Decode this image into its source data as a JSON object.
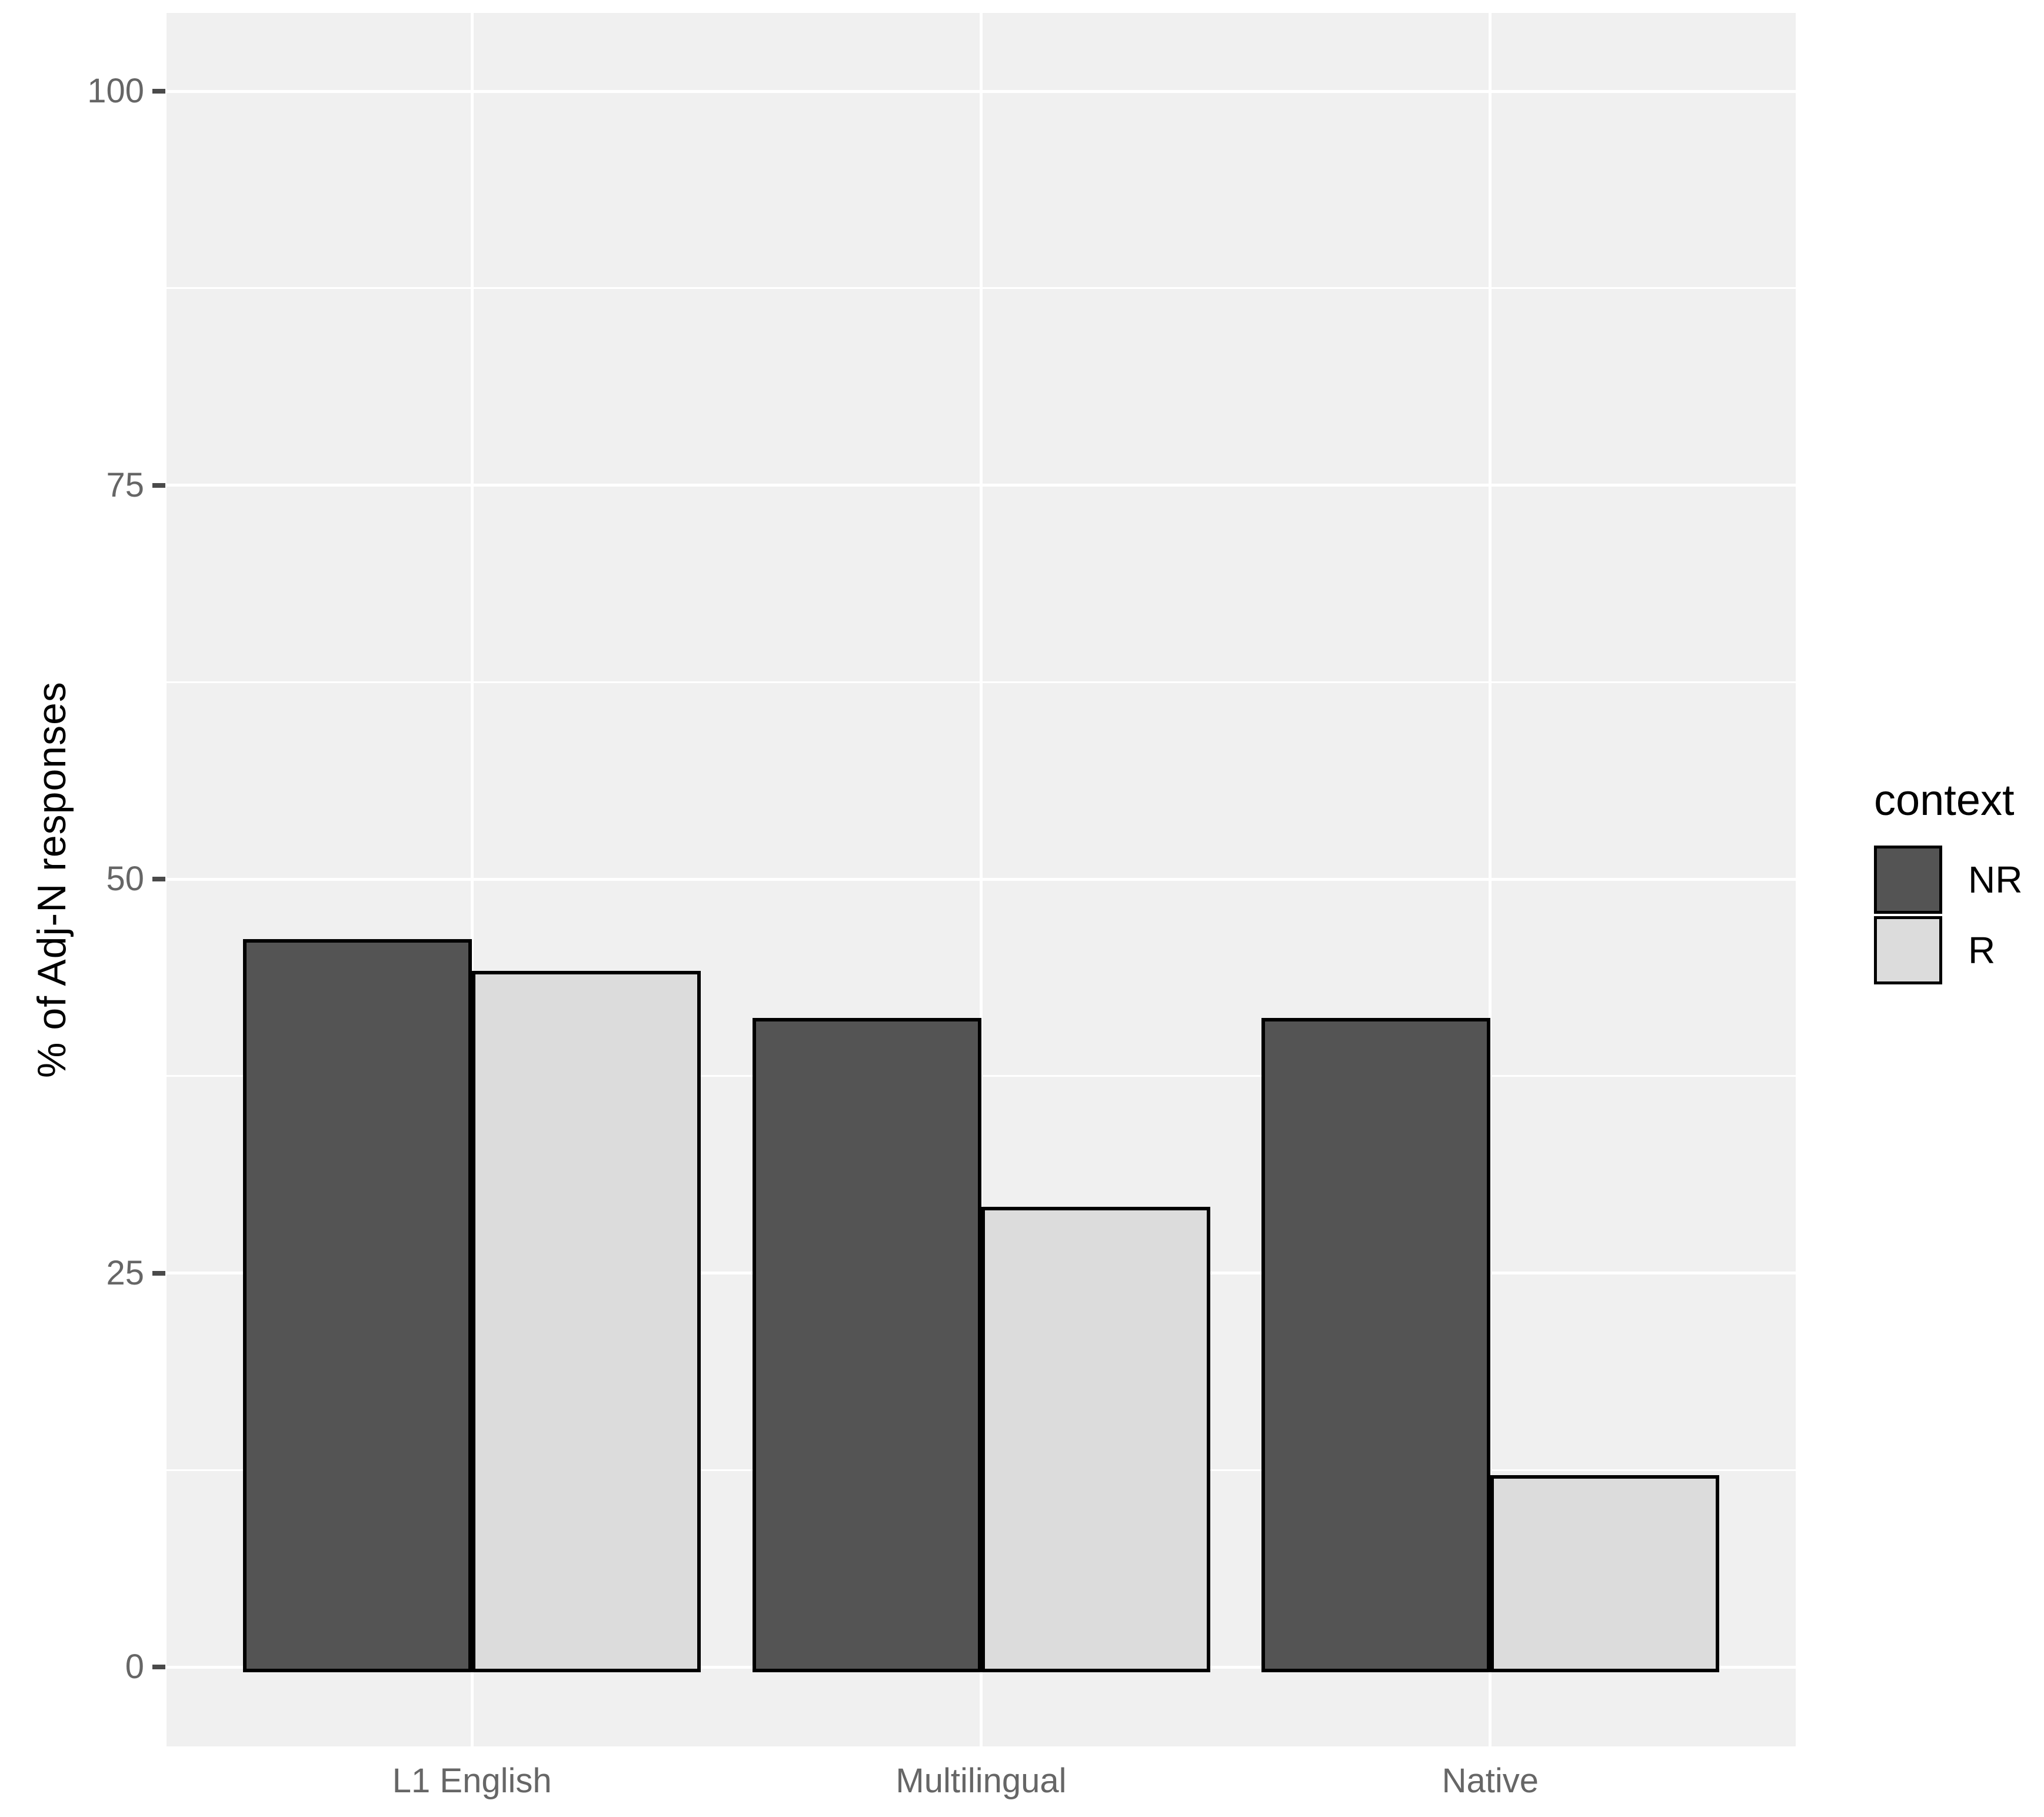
{
  "chart_data": {
    "type": "bar",
    "bar_mode": "dodge",
    "title": "",
    "xlabel": "",
    "ylabel": "% of Adj-N responses",
    "categories": [
      "L1 English",
      "Multilingual",
      "Native"
    ],
    "series": [
      {
        "name": "NR",
        "values": [
          46,
          41,
          41
        ],
        "color": "#545454"
      },
      {
        "name": "R",
        "values": [
          44,
          29,
          12
        ],
        "color": "#DCDCDC"
      }
    ],
    "ylim": [
      0,
      100
    ],
    "yticks": [
      0,
      25,
      50,
      75,
      100
    ],
    "ytick_labels": [
      "0",
      "25",
      "50",
      "75",
      "100"
    ],
    "y_minor_ticks": [
      12.5,
      37.5,
      62.5,
      87.5
    ],
    "grid": "white major horizontal+vertical and minor horizontal gridlines on gray panel",
    "legend_position": "right",
    "bar_outline_color": "#000000"
  },
  "legend": {
    "title": "context",
    "entries": [
      {
        "label": "NR",
        "color": "#545454"
      },
      {
        "label": "R",
        "color": "#DCDCDC"
      }
    ]
  },
  "colors": {
    "background": "#FFFFFF",
    "panel_bg": "#F0F0F0",
    "gridline": "#FFFFFF",
    "axis_text": "#666666",
    "axis_title": "#000000",
    "tick_mark": "#4A4A4A",
    "bar_outline": "#000000"
  }
}
